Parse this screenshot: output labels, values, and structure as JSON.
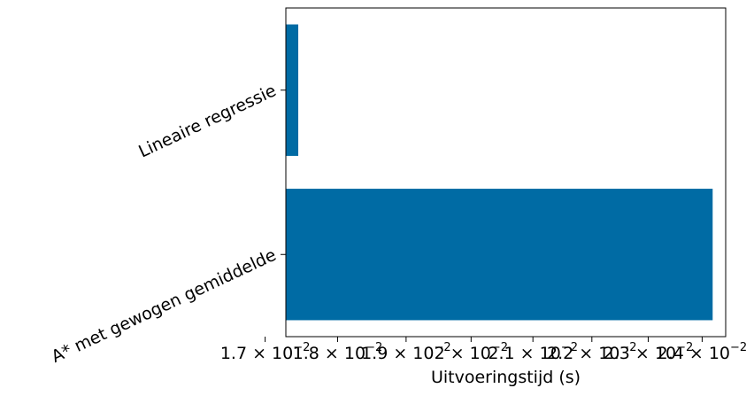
{
  "chart_data": {
    "type": "bar",
    "orientation": "horizontal",
    "scale_x": "log",
    "categories": [
      "A* met gewogen gemiddelde",
      "Lineaire regressie"
    ],
    "values": [
      0.0242,
      0.01745
    ],
    "xlabel": "Uitvoeringstijd (s)",
    "ylabel": "",
    "title": "",
    "xlim": [
      0.01728,
      0.02445
    ],
    "grid": false,
    "bar_color": "#006ba4",
    "x_ticks": [
      {
        "value": 0.017,
        "label": "1.7 × 10",
        "exp": "−2"
      },
      {
        "value": 0.018,
        "label": "1.8 × 10",
        "exp": "−2"
      },
      {
        "value": 0.019,
        "label": "1.9 × 10",
        "exp": "−2"
      },
      {
        "value": 0.02,
        "label": "2 × 10",
        "exp": "−2"
      },
      {
        "value": 0.021,
        "label": "2.1 × 10",
        "exp": "−2"
      },
      {
        "value": 0.022,
        "label": "2.2 × 10",
        "exp": "−2"
      },
      {
        "value": 0.023,
        "label": "2.3 × 10",
        "exp": "−2"
      },
      {
        "value": 0.024,
        "label": "2.4 × 10",
        "exp": "−2"
      }
    ]
  }
}
